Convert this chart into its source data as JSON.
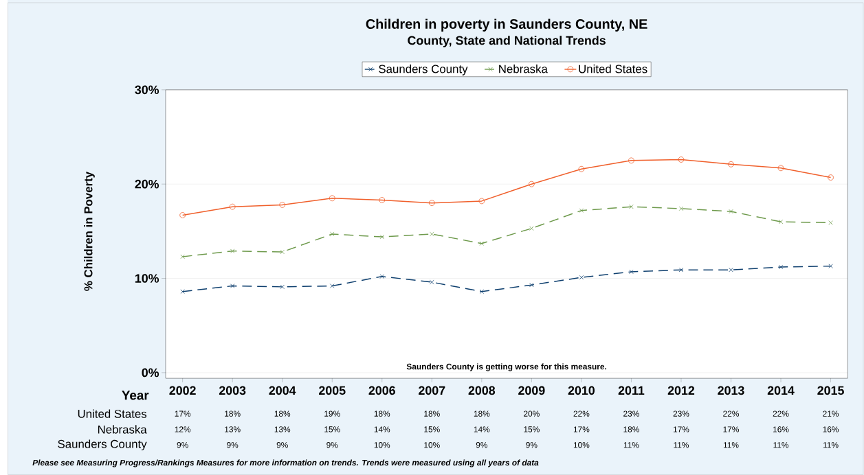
{
  "chart_data": {
    "type": "line",
    "title": "Children in poverty in Saunders County, NE",
    "subtitle": "County, State and National Trends",
    "xlabel": "Year",
    "ylabel": "% Children in Poverty",
    "categories": [
      "2002",
      "2003",
      "2004",
      "2005",
      "2006",
      "2007",
      "2008",
      "2009",
      "2010",
      "2011",
      "2012",
      "2013",
      "2014",
      "2015"
    ],
    "series": [
      {
        "name": "Saunders County",
        "color": "#0e3f6e",
        "marker": "cross",
        "line_style": "dashed",
        "values": [
          8.6,
          9.2,
          9.1,
          9.2,
          10.2,
          9.6,
          8.6,
          9.3,
          10.1,
          10.7,
          10.9,
          10.9,
          11.2,
          11.3
        ],
        "value_labels": [
          "9%",
          "9%",
          "9%",
          "9%",
          "10%",
          "10%",
          "9%",
          "9%",
          "10%",
          "11%",
          "11%",
          "11%",
          "11%",
          "11%"
        ]
      },
      {
        "name": "Nebraska",
        "color": "#6e9a4c",
        "marker": "cross",
        "line_style": "dashed",
        "values": [
          12.3,
          12.9,
          12.8,
          14.7,
          14.4,
          14.7,
          13.7,
          15.3,
          17.2,
          17.6,
          17.4,
          17.1,
          16.0,
          15.9
        ],
        "value_labels": [
          "12%",
          "13%",
          "13%",
          "15%",
          "14%",
          "15%",
          "14%",
          "15%",
          "17%",
          "18%",
          "17%",
          "17%",
          "16%",
          "16%"
        ]
      },
      {
        "name": "United States",
        "color": "#f0602c",
        "marker": "circle",
        "line_style": "solid",
        "values": [
          16.7,
          17.6,
          17.8,
          18.5,
          18.3,
          18.0,
          18.2,
          20.0,
          21.6,
          22.5,
          22.6,
          22.1,
          21.7,
          20.7
        ],
        "value_labels": [
          "17%",
          "18%",
          "18%",
          "19%",
          "18%",
          "18%",
          "18%",
          "20%",
          "22%",
          "23%",
          "23%",
          "22%",
          "22%",
          "21%"
        ]
      }
    ],
    "ylim": [
      -0.6,
      30
    ],
    "yticks": [
      {
        "value": 0,
        "label": "0%"
      },
      {
        "value": 10,
        "label": "10%"
      },
      {
        "value": 20,
        "label": "20%"
      },
      {
        "value": 30,
        "label": "30%"
      }
    ],
    "grid": "y",
    "legend": "top",
    "annotations": [
      "Saunders County is getting worse for this measure.",
      "Please see Measuring Progress/Rankings Measures for more information on trends. Trends were measured using all years of data"
    ]
  }
}
